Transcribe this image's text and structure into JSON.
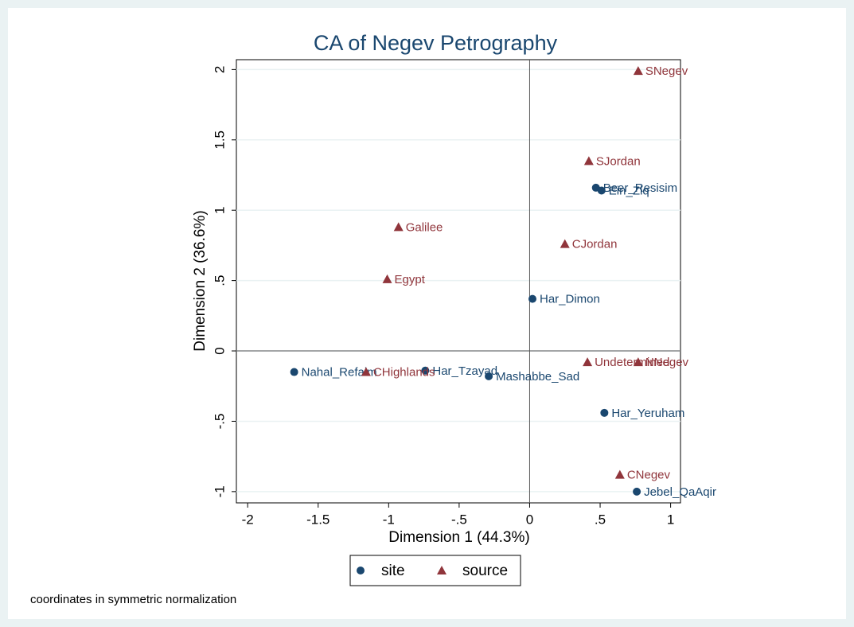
{
  "chart_data": {
    "type": "scatter",
    "title": "CA of Negev Petrography",
    "xlabel": "Dimension 1 (44.3%)",
    "ylabel": "Dimension 2 (36.6%)",
    "note": "coordinates in symmetric normalization",
    "xlim": [
      -2.08,
      1.07
    ],
    "ylim": [
      -1.08,
      2.07
    ],
    "xticks": [
      -2,
      -1.5,
      -1,
      {
        "value": -0.5,
        "label": "-.5"
      },
      0,
      {
        "value": 0.5,
        "label": ".5"
      },
      1
    ],
    "yticks": [
      -1,
      {
        "value": -0.5,
        "label": "-.5"
      },
      0,
      {
        "value": 0.5,
        "label": ".5"
      },
      1,
      1.5,
      2
    ],
    "xline": 0,
    "yline": 0,
    "grid": true,
    "legend": "bottom",
    "series": [
      {
        "name": "site",
        "color": "#1a476f",
        "marker": "circle",
        "labels": [
          "Beer_Resisim",
          "Ein_Ziq",
          "Har_Dimon",
          "Nahal_Refaim",
          "Har_Tzayad",
          "Mashabbe_Sad",
          "Har_Yeruham",
          "Jebel_QaAqir"
        ],
        "x": [
          0.47,
          0.51,
          0.02,
          -1.67,
          -0.74,
          -0.29,
          0.53,
          0.76
        ],
        "values": [
          1.16,
          1.14,
          0.37,
          -0.15,
          -0.14,
          -0.18,
          -0.44,
          -1.0
        ]
      },
      {
        "name": "source",
        "color": "#90353b",
        "marker": "triangle",
        "labels": [
          "SNegev",
          "SJordan",
          "Galilee",
          "CJordan",
          "Egypt",
          "Undetermined",
          "NNegev",
          "CHighlands",
          "CNegev"
        ],
        "x": [
          0.77,
          0.42,
          -0.93,
          0.25,
          -1.01,
          0.41,
          0.77,
          -1.16,
          0.64
        ],
        "values": [
          1.99,
          1.35,
          0.88,
          0.76,
          0.51,
          -0.08,
          -0.08,
          -0.15,
          -0.88
        ]
      }
    ]
  }
}
